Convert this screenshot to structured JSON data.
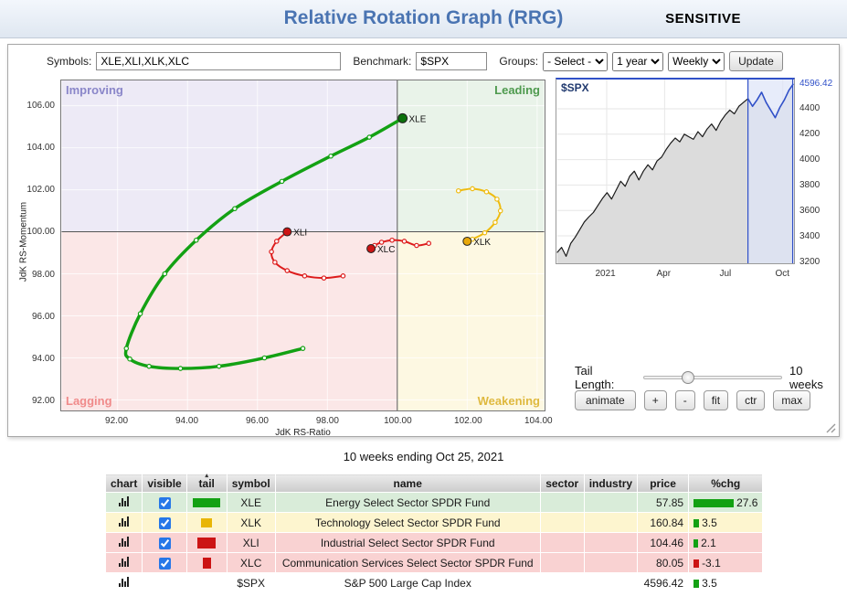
{
  "header": {
    "title": "Relative Rotation Graph (RRG)",
    "classification": "SENSITIVE"
  },
  "toolbar": {
    "symbols_label": "Symbols:",
    "symbols_value": "XLE,XLI,XLK,XLC",
    "benchmark_label": "Benchmark:",
    "benchmark_value": "$SPX",
    "groups_label": "Groups:",
    "groups_value": "- Select -",
    "period_value": "1 year",
    "frequency_value": "Weekly",
    "update_label": "Update"
  },
  "rrg": {
    "x_axis_title": "JdK RS-Ratio",
    "y_axis_title": "JdK RS-Momentum",
    "quadrants": {
      "top_left": {
        "label": "Improving",
        "color": "#8a86c9",
        "bg": "#edeaf6"
      },
      "top_right": {
        "label": "Leading",
        "color": "#4e9a4e",
        "bg": "#e9f3e9"
      },
      "bottom_left": {
        "label": "Lagging",
        "color": "#f08a8a",
        "bg": "#fbe7e7"
      },
      "bottom_right": {
        "label": "Weakening",
        "color": "#dfb93e",
        "bg": "#fdf8e2"
      }
    }
  },
  "tail_control": {
    "label": "Tail Length:",
    "value": "10 weeks"
  },
  "controls": {
    "animate": "animate",
    "zoom_in": "+",
    "zoom_out": "-",
    "fit": "fit",
    "ctr": "ctr",
    "max": "max"
  },
  "caption": "10 weeks ending Oct 25, 2021",
  "table": {
    "columns": [
      "chart",
      "visible",
      "tail",
      "symbol",
      "name",
      "sector",
      "industry",
      "price",
      "%chg"
    ],
    "sort_column": "tail",
    "rows": [
      {
        "symbol": "XLE",
        "name": "Energy Select Sector SPDR Fund",
        "sector": "",
        "industry": "",
        "price": "57.85",
        "visible": true,
        "row_bg": "#d9ecd9",
        "tail": {
          "color": "#13a113",
          "w": 30,
          "h": 10
        },
        "chg": {
          "value": "27.6",
          "color": "#13a113",
          "bar": 44
        }
      },
      {
        "symbol": "XLK",
        "name": "Technology Select Sector SPDR Fund",
        "sector": "",
        "industry": "",
        "price": "160.84",
        "visible": true,
        "row_bg": "#fdf5cf",
        "tail": {
          "color": "#e8b506",
          "w": 12,
          "h": 10
        },
        "chg": {
          "value": "3.5",
          "color": "#13a113",
          "bar": 6
        }
      },
      {
        "symbol": "XLI",
        "name": "Industrial Select Sector SPDR Fund",
        "sector": "",
        "industry": "",
        "price": "104.46",
        "visible": true,
        "row_bg": "#f9d2d2",
        "tail": {
          "color": "#cc1414",
          "w": 20,
          "h": 12
        },
        "chg": {
          "value": "2.1",
          "color": "#13a113",
          "bar": 5
        }
      },
      {
        "symbol": "XLC",
        "name": "Communication Services Select Sector SPDR Fund",
        "sector": "",
        "industry": "",
        "price": "80.05",
        "visible": true,
        "row_bg": "#f9d2d2",
        "tail": {
          "color": "#cc1414",
          "w": 9,
          "h": 12
        },
        "chg": {
          "value": "-3.1",
          "color": "#cc1414",
          "bar": 6
        }
      },
      {
        "symbol": "$SPX",
        "name": "S&P 500 Large Cap Index",
        "sector": "",
        "industry": "",
        "price": "4596.42",
        "visible": null,
        "row_bg": "#ffffff",
        "tail": null,
        "chg": {
          "value": "3.5",
          "color": "#13a113",
          "bar": 6
        }
      }
    ]
  },
  "chart_data": [
    {
      "id": "rrg",
      "type": "scatter",
      "title": "Relative Rotation Graph",
      "x_label": "JdK RS-Ratio",
      "y_label": "JdK RS-Momentum",
      "x_range": [
        90.4,
        104.2
      ],
      "y_range": [
        91.5,
        107.2
      ],
      "x_ticks": [
        "92.00",
        "94.00",
        "96.00",
        "98.00",
        "100.00",
        "102.00",
        "104.00"
      ],
      "y_ticks": [
        "106.00",
        "104.00",
        "102.00",
        "100.00",
        "98.00",
        "96.00",
        "94.00",
        "92.00"
      ],
      "center": [
        100,
        100
      ],
      "tail_length_weeks": 10,
      "tails": [
        {
          "symbol": "XLE",
          "color": "#13a113",
          "head_color": "#0b710b",
          "width": 3.5,
          "points": [
            [
              97.3,
              94.45
            ],
            [
              96.2,
              94.0
            ],
            [
              94.9,
              93.6
            ],
            [
              93.8,
              93.5
            ],
            [
              92.9,
              93.6
            ],
            [
              92.35,
              93.95
            ],
            [
              92.25,
              94.45
            ],
            [
              92.65,
              96.1
            ],
            [
              93.35,
              98.0
            ],
            [
              94.25,
              99.6
            ],
            [
              95.35,
              101.1
            ],
            [
              96.7,
              102.4
            ],
            [
              98.1,
              103.6
            ],
            [
              99.2,
              104.5
            ],
            [
              100.15,
              105.4
            ]
          ]
        },
        {
          "symbol": "XLI",
          "color": "#dd1c1c",
          "head_color": "#cc1414",
          "width": 2,
          "points": [
            [
              98.45,
              97.9
            ],
            [
              97.9,
              97.8
            ],
            [
              97.35,
              97.9
            ],
            [
              96.85,
              98.15
            ],
            [
              96.5,
              98.55
            ],
            [
              96.4,
              99.05
            ],
            [
              96.55,
              99.55
            ],
            [
              96.85,
              100.0
            ]
          ]
        },
        {
          "symbol": "XLC",
          "color": "#dd1c1c",
          "head_color": "#cc1414",
          "width": 2,
          "points": [
            [
              100.9,
              99.45
            ],
            [
              100.55,
              99.35
            ],
            [
              100.2,
              99.55
            ],
            [
              99.85,
              99.6
            ],
            [
              99.55,
              99.5
            ],
            [
              99.35,
              99.35
            ],
            [
              99.25,
              99.2
            ]
          ]
        },
        {
          "symbol": "XLK",
          "color": "#eebb10",
          "head_color": "#e8a80a",
          "width": 2,
          "points": [
            [
              101.75,
              101.95
            ],
            [
              102.15,
              102.05
            ],
            [
              102.55,
              101.9
            ],
            [
              102.85,
              101.55
            ],
            [
              102.95,
              101.0
            ],
            [
              102.8,
              100.45
            ],
            [
              102.5,
              99.95
            ],
            [
              102.15,
              99.65
            ],
            [
              102.0,
              99.55
            ]
          ]
        }
      ]
    },
    {
      "id": "spx",
      "type": "area",
      "title": "$SPX",
      "current_value": "4596.42",
      "y_range": [
        3185,
        4630
      ],
      "y_ticks": [
        4400,
        4200,
        4000,
        3800,
        3600,
        3400,
        3200
      ],
      "x_ticks": [
        "2021",
        "Apr",
        "Jul",
        "Oct"
      ],
      "x_tick_pos": [
        0.21,
        0.455,
        0.715,
        0.955
      ],
      "highlight_weeks": 10,
      "line_color": "#1a1a1a",
      "area_color": "#dcdcdc",
      "highlight_color": "#3050c8",
      "highlight_fill": "#dee4f8",
      "values": [
        3269,
        3310,
        3240,
        3340,
        3390,
        3450,
        3510,
        3550,
        3585,
        3640,
        3695,
        3740,
        3690,
        3760,
        3830,
        3790,
        3870,
        3910,
        3840,
        3910,
        3960,
        3920,
        3990,
        4020,
        4080,
        4130,
        4170,
        4140,
        4200,
        4180,
        4160,
        4220,
        4180,
        4240,
        4280,
        4230,
        4300,
        4350,
        4390,
        4360,
        4420,
        4450,
        4480,
        4420,
        4470,
        4530,
        4450,
        4390,
        4330,
        4410,
        4470,
        4545,
        4596.42
      ]
    }
  ]
}
